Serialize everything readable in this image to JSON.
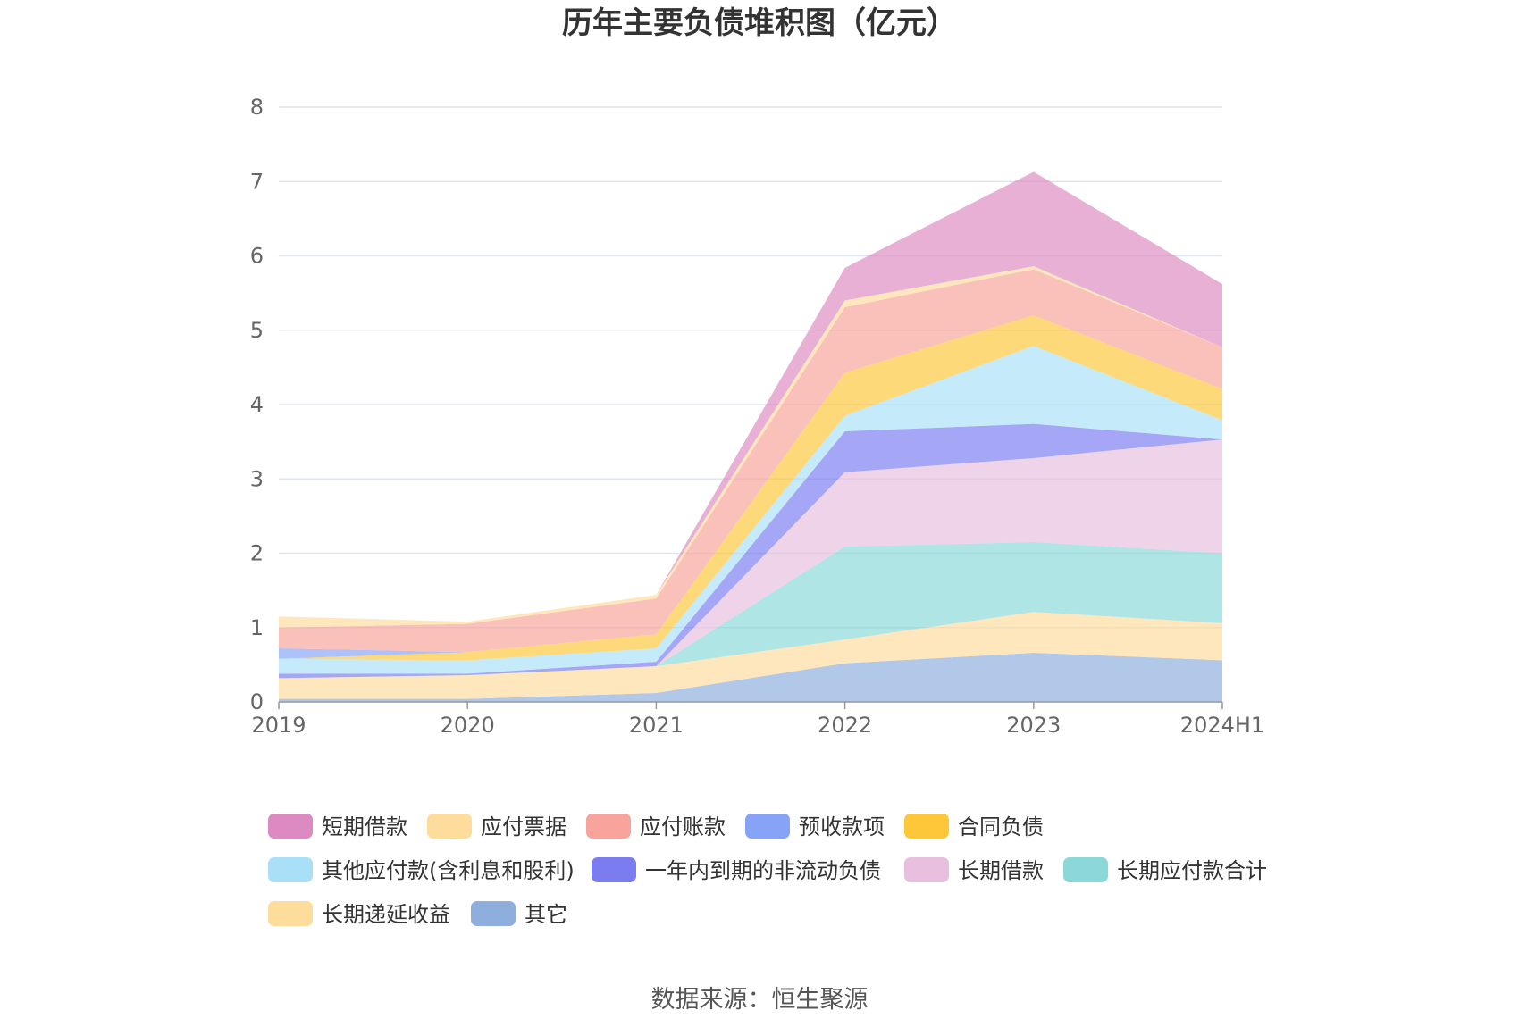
{
  "chart_data": {
    "type": "area",
    "stacked": true,
    "title": "历年主要负债堆积图（亿元）",
    "categories": [
      "2019",
      "2020",
      "2021",
      "2022",
      "2023",
      "2024H1"
    ],
    "ylim": [
      0,
      8
    ],
    "yticks": [
      0,
      1,
      2,
      3,
      4,
      5,
      6,
      7,
      8
    ],
    "grid": true,
    "legend_position": "bottom",
    "source": "数据来源：恒生聚源",
    "series": [
      {
        "name": "其它",
        "color": "#8eaedd",
        "values": [
          0.04,
          0.04,
          0.12,
          0.52,
          0.66,
          0.56
        ]
      },
      {
        "name": "长期递延收益",
        "color": "#fedc9c",
        "values": [
          0.28,
          0.32,
          0.36,
          0.32,
          0.55,
          0.5
        ]
      },
      {
        "name": "长期应付款合计",
        "color": "#8ad8d8",
        "values": [
          0.0,
          0.0,
          0.0,
          1.25,
          0.94,
          0.94
        ]
      },
      {
        "name": "长期借款",
        "color": "#e8bfdf",
        "values": [
          0.0,
          0.0,
          0.0,
          1.0,
          1.13,
          1.53
        ]
      },
      {
        "name": "一年内到期的非流动负债",
        "color": "#7b7cf0",
        "values": [
          0.06,
          0.02,
          0.06,
          0.55,
          0.46,
          0.0
        ]
      },
      {
        "name": "其他应付款(含利息和股利)",
        "color": "#a9e0f8",
        "values": [
          0.2,
          0.18,
          0.18,
          0.21,
          1.05,
          0.26
        ]
      },
      {
        "name": "合同负债",
        "color": "#fec73a",
        "values": [
          0.0,
          0.11,
          0.19,
          0.58,
          0.41,
          0.42
        ]
      },
      {
        "name": "预收款项",
        "color": "#86a3f8",
        "values": [
          0.14,
          0.0,
          0.0,
          0.0,
          0.0,
          0.0
        ]
      },
      {
        "name": "应付账款",
        "color": "#f8a39b",
        "values": [
          0.28,
          0.38,
          0.48,
          0.88,
          0.62,
          0.56
        ]
      },
      {
        "name": "应付票据",
        "color": "#fedc9c",
        "values": [
          0.15,
          0.03,
          0.05,
          0.09,
          0.04,
          0.0
        ]
      },
      {
        "name": "短期借款",
        "color": "#dd8ac0",
        "values": [
          0.0,
          0.0,
          0.0,
          0.44,
          1.27,
          0.85
        ]
      }
    ],
    "legend_order": [
      "短期借款",
      "应付票据",
      "应付账款",
      "预收款项",
      "合同负债",
      "其他应付款(含利息和股利)",
      "一年内到期的非流动负债",
      "长期借款",
      "长期应付款合计",
      "长期递延收益",
      "其它"
    ]
  }
}
